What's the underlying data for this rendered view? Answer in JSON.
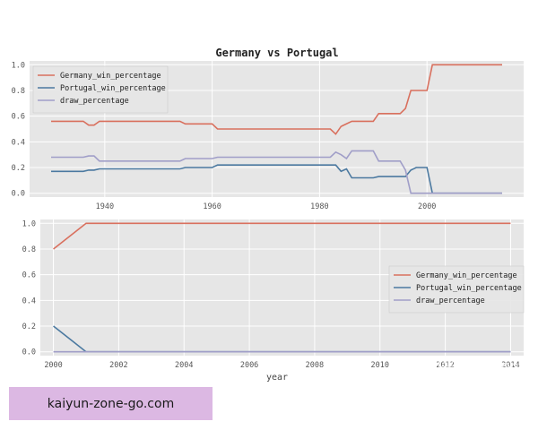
{
  "colors": {
    "germany": "#d9705e",
    "portugal": "#4b79a0",
    "draw": "#a09ec8",
    "panel_bg": "#e6e6e6",
    "grid": "#ffffff",
    "banner": "#dcb8e3"
  },
  "chart_data": [
    {
      "type": "line",
      "title": "Germany vs Portugal",
      "xlabel": "",
      "ylabel": "",
      "xlim": [
        1926,
        2018
      ],
      "ylim": [
        -0.03,
        1.03
      ],
      "xticks": [
        1940,
        1960,
        1980,
        2000
      ],
      "yticks": [
        0.0,
        0.2,
        0.4,
        0.6,
        0.8,
        1.0
      ],
      "tick_labels_y": [
        "0.0",
        "0.2",
        "0.4",
        "0.6",
        "0.8",
        "1.0"
      ],
      "tick_labels_x": [
        "1940",
        "1960",
        "1980",
        "2000"
      ],
      "grid": true,
      "legend": "top-left",
      "series": [
        {
          "name": "Germany_win_percentage",
          "color": "germany",
          "x": [
            1930,
            1936,
            1937,
            1938,
            1939,
            1954,
            1955,
            1960,
            1961,
            1982,
            1983,
            1984,
            1986,
            1990,
            1991,
            1994,
            1995,
            1996,
            1997,
            1998,
            1999,
            2000,
            2001,
            2014
          ],
          "y": [
            0.56,
            0.56,
            0.53,
            0.53,
            0.56,
            0.56,
            0.54,
            0.54,
            0.5,
            0.5,
            0.46,
            0.52,
            0.56,
            0.56,
            0.62,
            0.62,
            0.62,
            0.66,
            0.8,
            0.8,
            0.8,
            0.8,
            1.0,
            1.0
          ]
        },
        {
          "name": "Portugal_win_percentage",
          "color": "portugal",
          "x": [
            1930,
            1936,
            1937,
            1938,
            1939,
            1954,
            1955,
            1960,
            1961,
            1982,
            1983,
            1984,
            1985,
            1986,
            1990,
            1991,
            1995,
            1996,
            1997,
            1998,
            1999,
            2000,
            2001,
            2014
          ],
          "y": [
            0.17,
            0.17,
            0.18,
            0.18,
            0.19,
            0.19,
            0.2,
            0.2,
            0.22,
            0.22,
            0.22,
            0.17,
            0.19,
            0.12,
            0.12,
            0.13,
            0.13,
            0.13,
            0.18,
            0.2,
            0.2,
            0.2,
            0.0,
            0.0
          ]
        },
        {
          "name": "draw_percentage",
          "color": "draw",
          "x": [
            1930,
            1936,
            1937,
            1938,
            1939,
            1954,
            1955,
            1960,
            1961,
            1982,
            1983,
            1984,
            1985,
            1986,
            1990,
            1991,
            1995,
            1996,
            1997,
            2014
          ],
          "y": [
            0.28,
            0.28,
            0.29,
            0.29,
            0.25,
            0.25,
            0.27,
            0.27,
            0.28,
            0.28,
            0.32,
            0.3,
            0.27,
            0.33,
            0.33,
            0.25,
            0.25,
            0.18,
            0.0,
            0.0
          ]
        }
      ]
    },
    {
      "type": "line",
      "title": "",
      "xlabel": "year",
      "ylabel": "",
      "xlim": [
        1999.6,
        2014.4
      ],
      "ylim": [
        -0.03,
        1.03
      ],
      "xticks": [
        2000,
        2002,
        2004,
        2006,
        2008,
        2010,
        2012,
        2014
      ],
      "yticks": [
        0.0,
        0.2,
        0.4,
        0.6,
        0.8,
        1.0
      ],
      "tick_labels_y": [
        "0.0",
        "0.2",
        "0.4",
        "0.6",
        "0.8",
        "1.0"
      ],
      "tick_labels_x": [
        "2000",
        "2002",
        "2004",
        "2006",
        "2008",
        "2010",
        "2012",
        "2014"
      ],
      "grid": true,
      "legend": "center-right",
      "series": [
        {
          "name": "Germany_win_percentage",
          "color": "germany",
          "x": [
            2000,
            2001,
            2014
          ],
          "y": [
            0.8,
            1.0,
            1.0
          ]
        },
        {
          "name": "Portugal_win_percentage",
          "color": "portugal",
          "x": [
            2000,
            2001,
            2014
          ],
          "y": [
            0.2,
            0.0,
            0.0
          ]
        },
        {
          "name": "draw_percentage",
          "color": "draw",
          "x": [
            2000,
            2014
          ],
          "y": [
            0.0,
            0.0
          ]
        }
      ]
    }
  ],
  "watermark": "知乎 @lemon",
  "banner": {
    "text": "kaiyun-zone-go.com"
  }
}
